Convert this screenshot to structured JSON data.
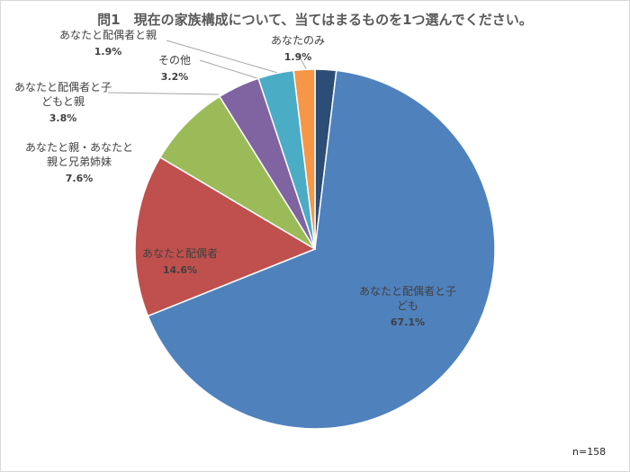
{
  "chart_data": {
    "type": "pie",
    "title": "問1　現在の家族構成について、当てはまるものを1つ選んでください。",
    "note": "n=158",
    "slices": [
      {
        "label_lines": [
          "あなたのみ"
        ],
        "value": 1.9,
        "display": "1.9%",
        "color": "#2c4d75"
      },
      {
        "label_lines": [
          "あなたと配偶者と子",
          "ども"
        ],
        "value": 67.1,
        "display": "67.1%",
        "color": "#4f81bd"
      },
      {
        "label_lines": [
          "あなたと配偶者"
        ],
        "value": 14.6,
        "display": "14.6%",
        "color": "#c0504d"
      },
      {
        "label_lines": [
          "あなたと親・あなたと",
          "親と兄弟姉妹"
        ],
        "value": 7.6,
        "display": "7.6%",
        "color": "#9bbb59"
      },
      {
        "label_lines": [
          "あなたと配偶者と子",
          "どもと親"
        ],
        "value": 3.8,
        "display": "3.8%",
        "color": "#8064a2"
      },
      {
        "label_lines": [
          "その他"
        ],
        "value": 3.2,
        "display": "3.2%",
        "color": "#4bacc6"
      },
      {
        "label_lines": [
          "あなたと配偶者と親"
        ],
        "value": 1.9,
        "display": "1.9%",
        "color": "#f79646"
      }
    ]
  }
}
